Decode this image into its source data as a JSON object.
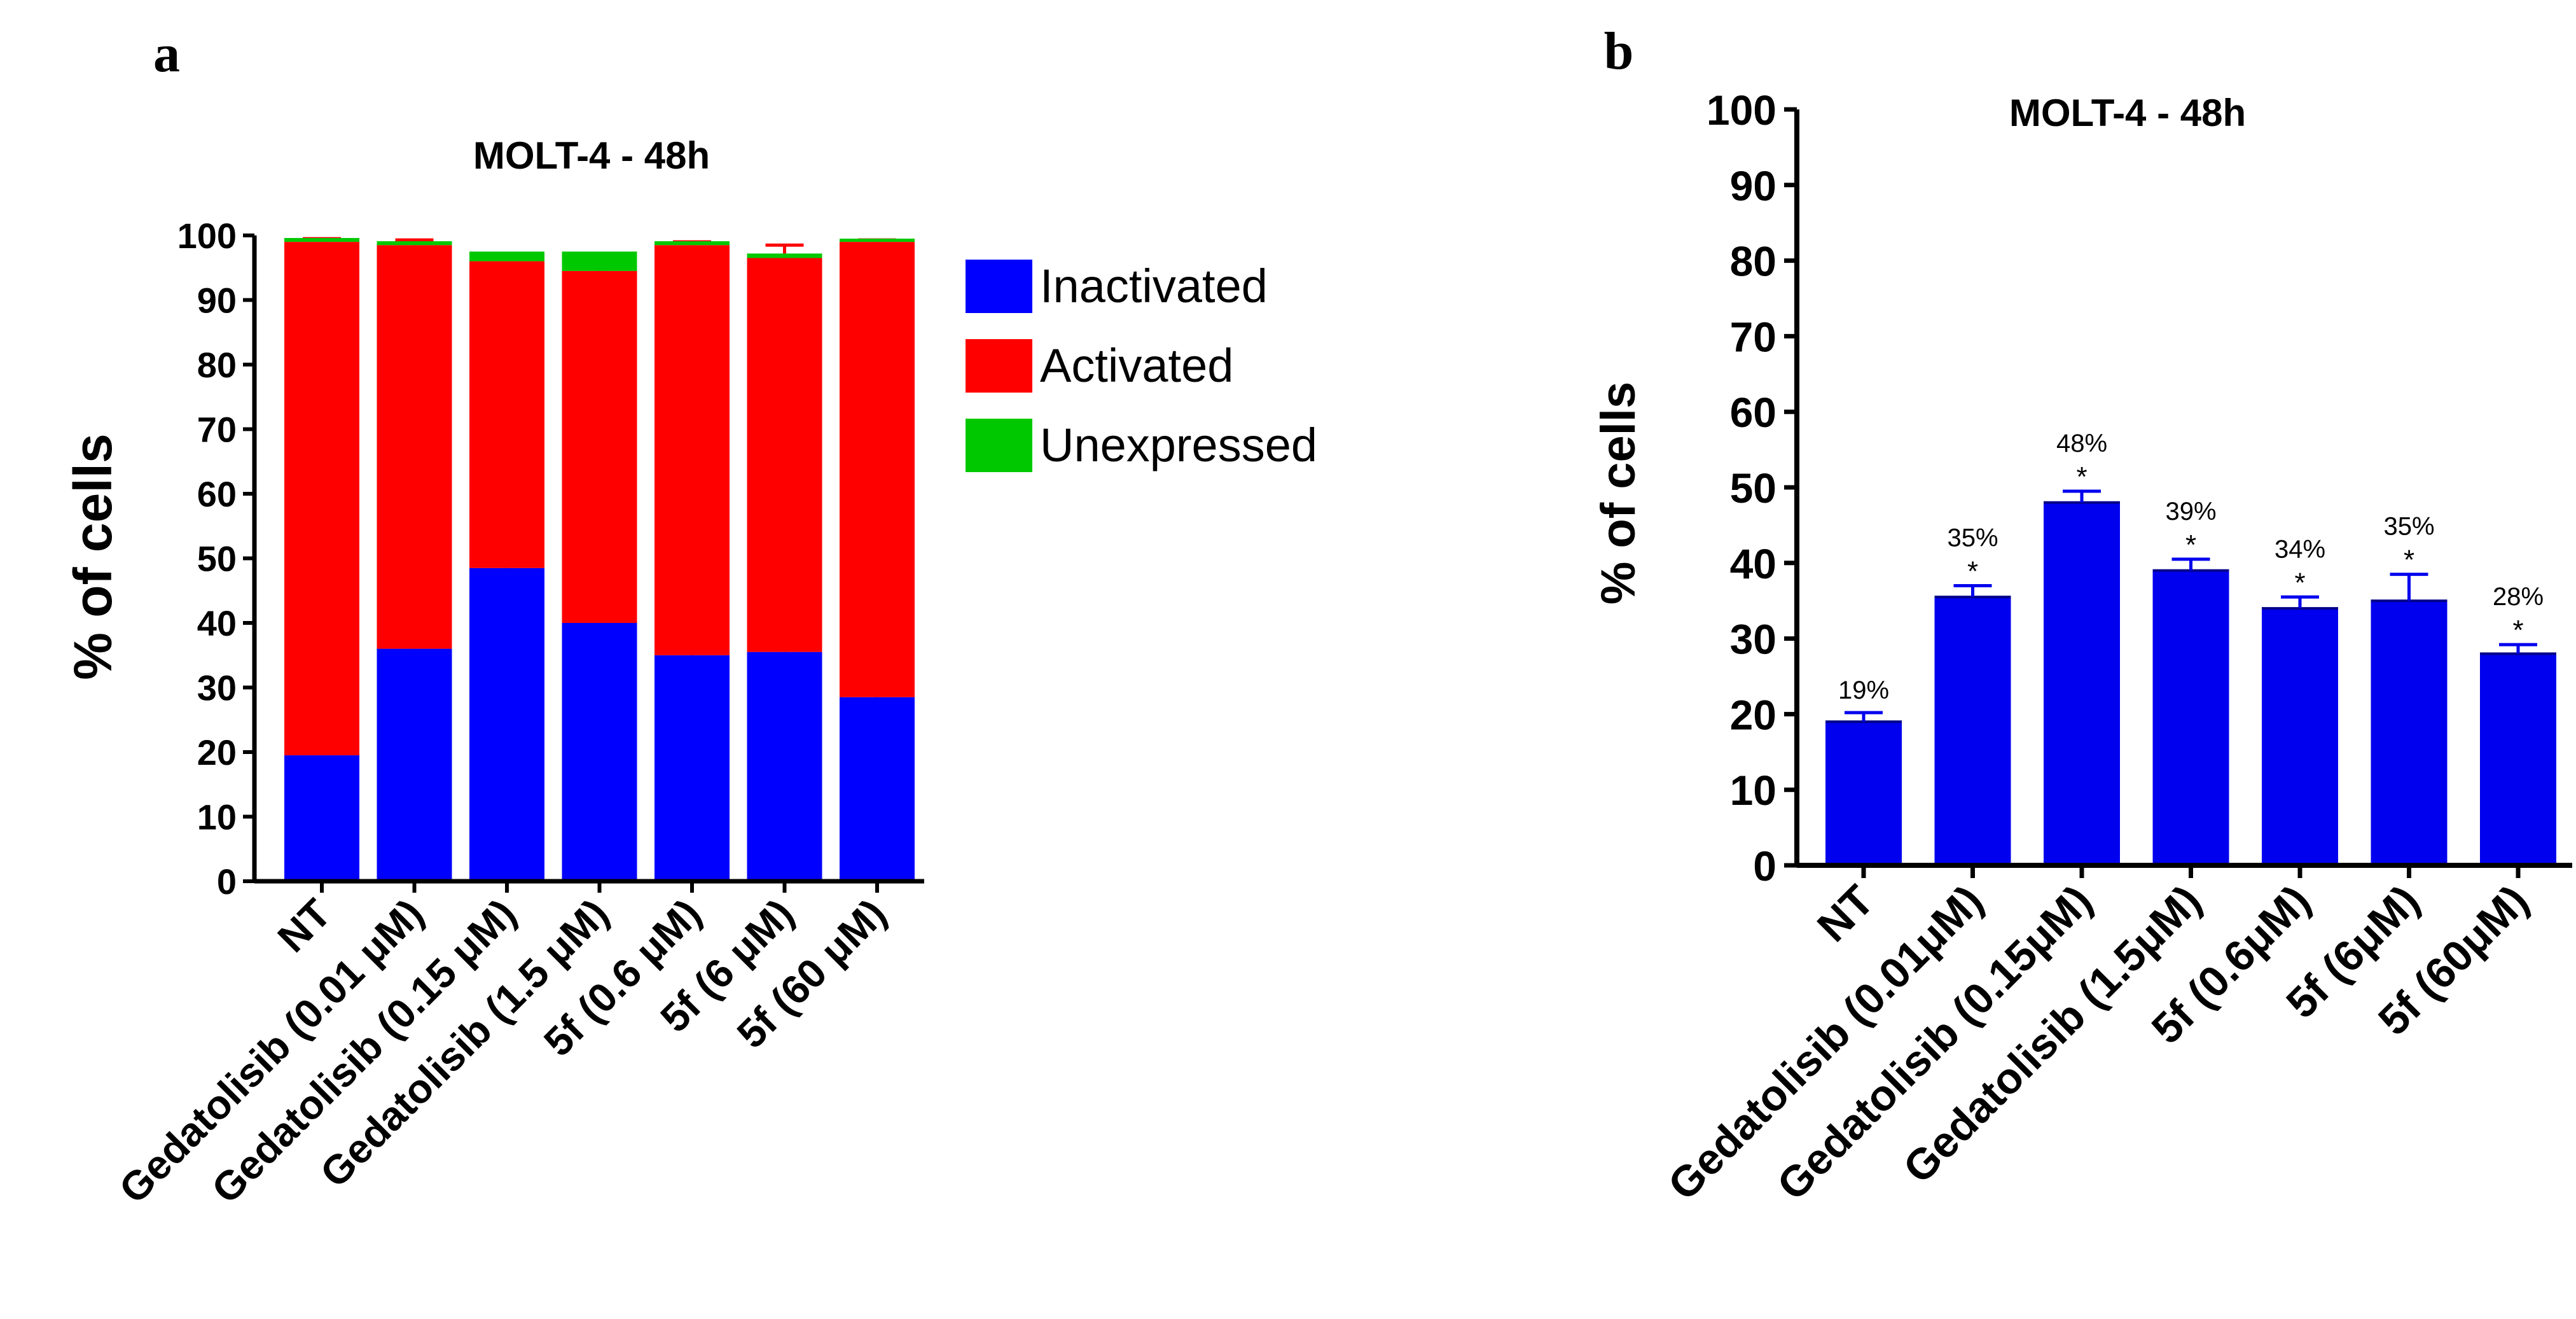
{
  "panels": [
    {
      "letter": "a",
      "chart_data": {
        "type": "bar",
        "stacked": true,
        "title": "MOLT-4 - 48h",
        "xlabel": "",
        "ylabel": "%  of cells",
        "ylim": [
          0,
          100
        ],
        "yticks": [
          0,
          10,
          20,
          30,
          40,
          50,
          60,
          70,
          80,
          90,
          100
        ],
        "grid": false,
        "legend_position": "right",
        "categories": [
          "NT",
          "Gedatolisib (0.01 μM)",
          "Gedatolisib (0.15 μM)",
          "Gedatolisib (1.5 μM)",
          "5f (0.6 μM)",
          "5f (6 μM)",
          "5f (60 μM)"
        ],
        "series": [
          {
            "name": "Inactivated",
            "color": "#0000ff",
            "values": [
              19.5,
              36,
              48.5,
              40,
              35,
              35.5,
              28.5
            ],
            "errors": [
              0.5,
              1,
              1,
              0.5,
              0.5,
              3,
              1
            ]
          },
          {
            "name": "Activated",
            "color": "#ff0000",
            "values": [
              79.5,
              62.5,
              47.5,
              54.5,
              63.5,
              61,
              70.5
            ],
            "errors": [
              0.5,
              0.8,
              0.5,
              0.5,
              0.5,
              2,
              0.3
            ]
          },
          {
            "name": "Unexpressed",
            "color": "#00c800",
            "values": [
              0.6,
              0.6,
              1.5,
              3,
              0.6,
              0.7,
              0.5
            ],
            "errors": [
              0,
              0,
              0,
              0,
              0,
              0,
              0
            ]
          }
        ]
      }
    },
    {
      "letter": "b",
      "chart_data": {
        "type": "bar",
        "title": "MOLT-4 - 48h",
        "xlabel": "",
        "ylabel": "% of cells",
        "ylim": [
          0,
          100
        ],
        "yticks": [
          0,
          10,
          20,
          30,
          40,
          50,
          60,
          70,
          80,
          90,
          100
        ],
        "grid": false,
        "categories": [
          "NT",
          "Gedatolisib (0.01μM)",
          "Gedatolisib (0.15μM)",
          "Gedatolisib (1.5μM)",
          "5f (0.6μM)",
          "5f (6μM)",
          "5f (60μM)"
        ],
        "series": [
          {
            "name": "% of cells",
            "color": "#0000ee",
            "values": [
              19,
              35.5,
              48,
              39,
              34,
              35,
              28
            ],
            "errors": [
              1.2,
              1.5,
              1.5,
              1.5,
              1.5,
              3.5,
              1.2
            ]
          }
        ],
        "labels": [
          "19%",
          "35%",
          "48%",
          "39%",
          "34%",
          "35%",
          "28%"
        ],
        "significance": [
          "",
          "*",
          "*",
          "*",
          "*",
          "*",
          "*"
        ]
      }
    }
  ]
}
